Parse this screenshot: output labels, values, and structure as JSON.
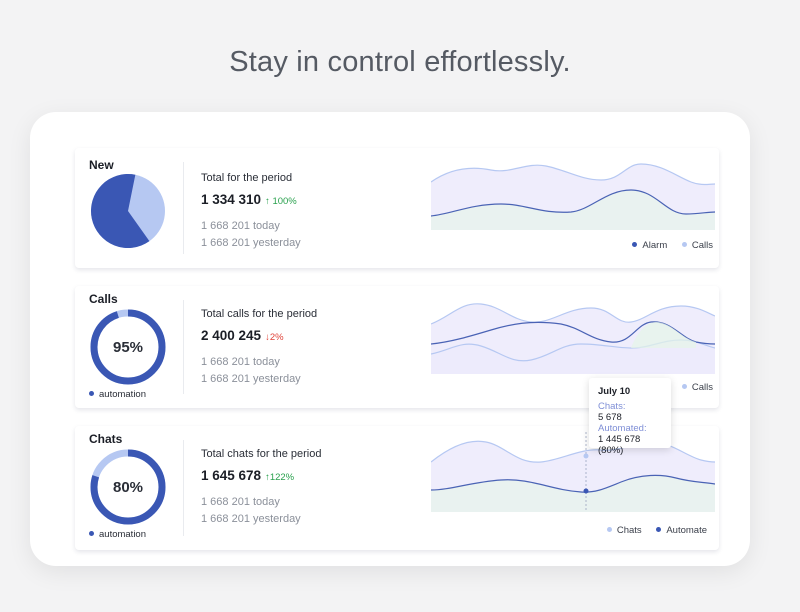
{
  "hero": {
    "title": "Stay in control effortlessly."
  },
  "panels": {
    "new": {
      "title": "New",
      "stat_label": "Total for the period",
      "value": "1 334 310",
      "change": "100%",
      "change_dir": "up",
      "today": "1 668 201 today",
      "yesterday": "1 668 201 yesterday",
      "pie_dark_fraction": 0.63,
      "legend": [
        "Alarm",
        "Calls"
      ]
    },
    "calls": {
      "title": "Calls",
      "stat_label": "Total calls for the period",
      "value": "2 400 245",
      "change": "2%",
      "change_dir": "down",
      "today": "1 668 201 today",
      "yesterday": "1 668 201 yesterday",
      "ring_percent": "95%",
      "ring_fraction": 0.95,
      "ring_legend": "automation",
      "legend": [
        "Calls"
      ]
    },
    "chats": {
      "title": "Chats",
      "stat_label": "Total chats for the period",
      "value": "1 645 678",
      "change": "122%",
      "change_dir": "up",
      "today": "1 668 201 today",
      "yesterday": "1 668 201 yesterday",
      "ring_percent": "80%",
      "ring_fraction": 0.8,
      "ring_legend": "automation",
      "legend": [
        "Chats",
        "Automate"
      ]
    }
  },
  "tooltip": {
    "date": "July 10",
    "chats_label": "Chats:",
    "chats_value": "5 678",
    "automated_label": "Automated:",
    "automated_value": "1 445 678 (80%)"
  },
  "colors": {
    "dark_blue": "#3a57b4",
    "light_blue": "#b6c8f2",
    "up": "#2aa14e",
    "down": "#e0433a",
    "area_purple": "#ebe9fb",
    "area_green": "#e5f5e8"
  },
  "icons": [
    "arrow-up-icon",
    "arrow-down-icon"
  ]
}
